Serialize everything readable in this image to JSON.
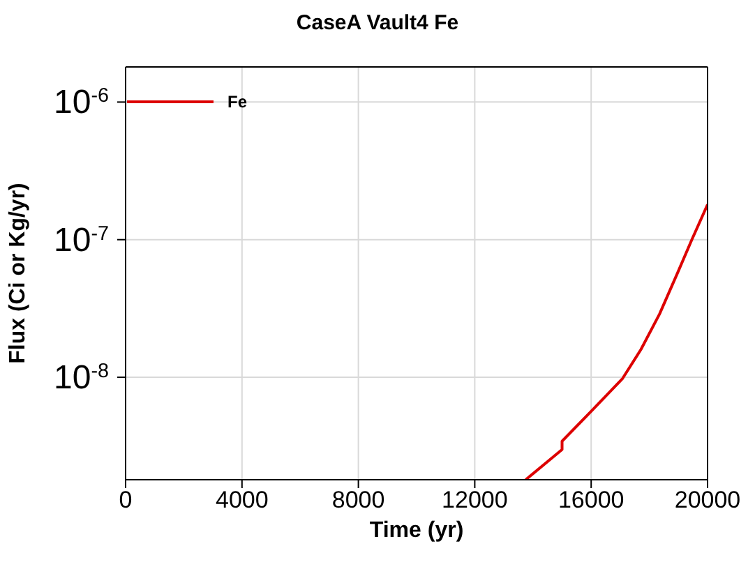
{
  "chart_data": {
    "type": "line",
    "title": "CaseA Vault4 Fe",
    "xlabel": "Time (yr)",
    "ylabel": "Flux (Ci or Kg/yr)",
    "x": [
      13750,
      15000,
      15000,
      16000,
      17080,
      17710,
      18350,
      18980,
      19460,
      20000
    ],
    "series": [
      {
        "name": "Fe",
        "color": "#dd0000",
        "values": [
          1.8e-09,
          2.98e-09,
          3.43e-09,
          5.66e-09,
          9.8e-09,
          1.59e-08,
          2.88e-08,
          5.8e-08,
          1e-07,
          1.8e-07
        ]
      }
    ],
    "xlim": [
      0,
      20000
    ],
    "xticks": [
      0,
      4000,
      8000,
      12000,
      16000,
      20000
    ],
    "ylim": [
      1.8e-09,
      1.8e-06
    ],
    "yticks": [
      {
        "value": 1e-08,
        "label": "10$^{-8}$"
      },
      {
        "value": 1e-07,
        "label": "10$^{-7}$"
      },
      {
        "value": 1e-06,
        "label": "10$^{-6}$"
      }
    ],
    "log": "y",
    "grid": true,
    "legend": "top left",
    "marker": "none",
    "line_style": "solid"
  }
}
